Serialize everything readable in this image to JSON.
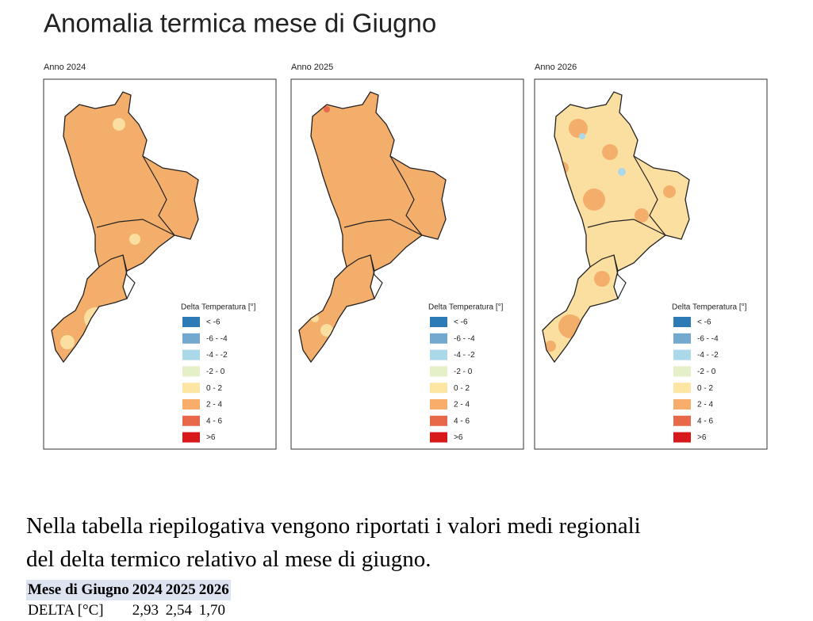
{
  "title": "Anomalia termica mese di Giugno",
  "maps": [
    {
      "label": "Anno 2024"
    },
    {
      "label": "Anno 2025"
    },
    {
      "label": "Anno 2026"
    }
  ],
  "legend": {
    "title": "Delta Temperatura [°]",
    "items": [
      {
        "label": "< -6",
        "color": "#2c7bb6"
      },
      {
        "label": "-6 - -4",
        "color": "#74a9cf"
      },
      {
        "label": "-4 - -2",
        "color": "#abd9e9"
      },
      {
        "label": "-2 - 0",
        "color": "#e6f0c8"
      },
      {
        "label": "0 - 2",
        "color": "#fde5a3"
      },
      {
        "label": "2 - 4",
        "color": "#f8ae6a"
      },
      {
        "label": "4 - 6",
        "color": "#e8694a"
      },
      {
        "label": ">6",
        "color": "#d7191c"
      }
    ]
  },
  "paragraph": [
    "Nella tabella riepilogativa vengono riportati i valori medi regionali",
    "del delta termico relativo al mese di giugno."
  ],
  "table": {
    "header": [
      "Mese di Giugno",
      "2024",
      "2025",
      "2026"
    ],
    "rows": [
      [
        "DELTA [°C]",
        "2,93",
        "2,54",
        "1,70"
      ]
    ]
  }
}
